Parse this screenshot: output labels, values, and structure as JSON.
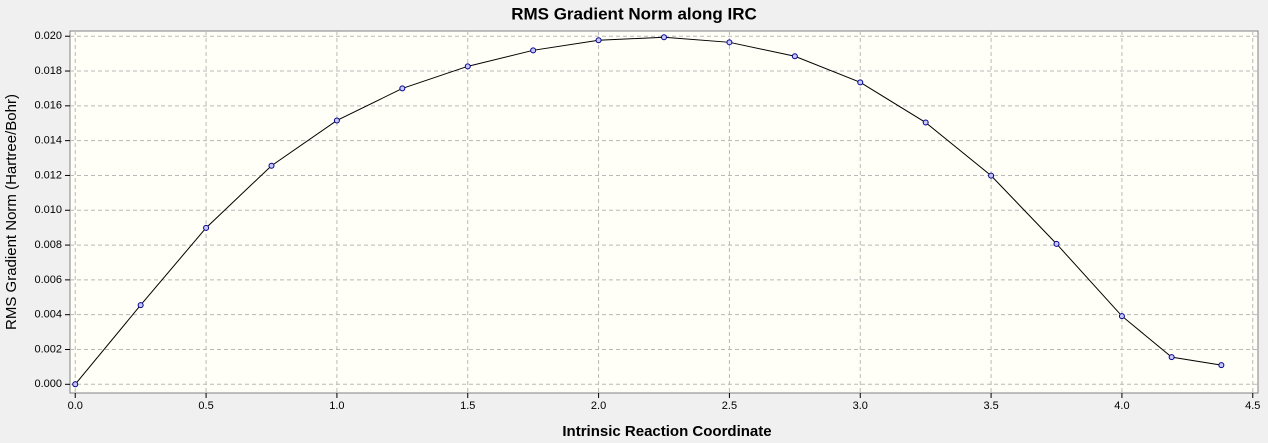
{
  "chart_data": {
    "type": "line",
    "title": "RMS Gradient Norm along IRC",
    "xlabel": "Intrinsic Reaction Coordinate",
    "ylabel": "RMS Gradient Norm (Hartree/Bohr)",
    "x": [
      0,
      0.25,
      0.5,
      0.75,
      1.0,
      1.25,
      1.5,
      1.75,
      2.0,
      2.25,
      2.5,
      2.75,
      3.0,
      3.25,
      3.5,
      3.75,
      4.0,
      4.19,
      4.38
    ],
    "series": [
      {
        "color": "#000000",
        "values": [
          0,
          0.00455,
          0.00899,
          0.01256,
          0.01516,
          0.017,
          0.01827,
          0.01919,
          0.01977,
          0.01994,
          0.01965,
          0.01885,
          0.01735,
          0.01504,
          0.01199,
          0.00807,
          0.00392,
          0.00156,
          0.0011
        ]
      }
    ],
    "xlim": [
      -0.02,
      4.52
    ],
    "ylim": [
      -0.0005,
      0.0203
    ],
    "xticks": [
      {
        "value": 0,
        "label": "0.0"
      },
      0.5,
      {
        "value": 1,
        "label": "1.0"
      },
      1.5,
      {
        "value": 2,
        "label": "2.0"
      },
      2.5,
      {
        "value": 3,
        "label": "3.0"
      },
      3.5,
      {
        "value": 4,
        "label": "4.0"
      },
      4.5
    ],
    "yticks": [
      {
        "value": 0,
        "label": "0.000"
      },
      {
        "value": 0.002,
        "label": "0.002"
      },
      {
        "value": 0.004,
        "label": "0.004"
      },
      {
        "value": 0.006,
        "label": "0.006"
      },
      {
        "value": 0.008,
        "label": "0.008"
      },
      {
        "value": 0.01,
        "label": "0.010"
      },
      {
        "value": 0.012,
        "label": "0.012"
      },
      {
        "value": 0.014,
        "label": "0.014"
      },
      {
        "value": 0.016,
        "label": "0.016"
      },
      {
        "value": 0.018,
        "label": "0.018"
      },
      {
        "value": 0.02,
        "label": "0.020"
      }
    ],
    "grid": true
  }
}
